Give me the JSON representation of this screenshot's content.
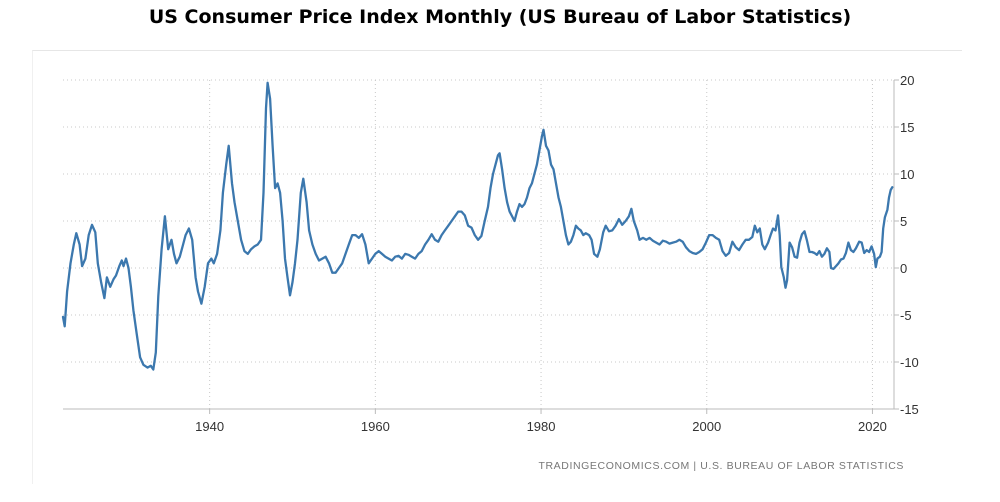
{
  "chart_data": {
    "type": "line",
    "title": "US Consumer Price Index Monthly (US Bureau of Labor Statistics)",
    "source": "TRADINGECONOMICS.COM  |  U.S. BUREAU OF LABOR STATISTICS",
    "xlabel": "",
    "ylabel": "",
    "xlim": [
      1922.3,
      2022.6
    ],
    "ylim": [
      -15,
      20
    ],
    "x_ticks": [
      1940,
      1960,
      1980,
      2000,
      2020
    ],
    "y_ticks": [
      20,
      15,
      10,
      5,
      0,
      -5,
      -10,
      -15
    ],
    "y_axis_position": "right",
    "grid": "dotted vertical and horizontal",
    "line_color": "#3c78ae",
    "series": [
      {
        "values": [
          [
            1922.3,
            -5.2
          ],
          [
            1922.5,
            -6.2
          ],
          [
            1922.8,
            -2.5
          ],
          [
            1923.2,
            0.5
          ],
          [
            1923.6,
            2.5
          ],
          [
            1923.9,
            3.7
          ],
          [
            1924.3,
            2.5
          ],
          [
            1924.6,
            0.2
          ],
          [
            1925.0,
            1.0
          ],
          [
            1925.4,
            3.5
          ],
          [
            1925.8,
            4.6
          ],
          [
            1926.2,
            3.8
          ],
          [
            1926.5,
            0.5
          ],
          [
            1926.9,
            -1.5
          ],
          [
            1927.3,
            -3.2
          ],
          [
            1927.6,
            -1.0
          ],
          [
            1928.0,
            -2.0
          ],
          [
            1928.4,
            -1.2
          ],
          [
            1928.7,
            -0.8
          ],
          [
            1929.1,
            0.2
          ],
          [
            1929.4,
            0.8
          ],
          [
            1929.6,
            0.2
          ],
          [
            1929.9,
            1.0
          ],
          [
            1930.2,
            0.0
          ],
          [
            1930.5,
            -2.0
          ],
          [
            1930.8,
            -4.5
          ],
          [
            1931.2,
            -7.0
          ],
          [
            1931.6,
            -9.5
          ],
          [
            1932.0,
            -10.3
          ],
          [
            1932.5,
            -10.6
          ],
          [
            1932.9,
            -10.4
          ],
          [
            1933.2,
            -10.8
          ],
          [
            1933.5,
            -9.0
          ],
          [
            1933.8,
            -3.0
          ],
          [
            1934.2,
            2.0
          ],
          [
            1934.6,
            5.5
          ],
          [
            1935.0,
            2.0
          ],
          [
            1935.4,
            3.0
          ],
          [
            1935.7,
            1.5
          ],
          [
            1936.0,
            0.5
          ],
          [
            1936.4,
            1.2
          ],
          [
            1936.8,
            2.5
          ],
          [
            1937.1,
            3.5
          ],
          [
            1937.5,
            4.2
          ],
          [
            1937.9,
            3.0
          ],
          [
            1938.3,
            -1.0
          ],
          [
            1938.6,
            -2.5
          ],
          [
            1939.0,
            -3.8
          ],
          [
            1939.4,
            -2.0
          ],
          [
            1939.8,
            0.5
          ],
          [
            1940.2,
            1.0
          ],
          [
            1940.5,
            0.5
          ],
          [
            1940.9,
            1.5
          ],
          [
            1941.3,
            4.0
          ],
          [
            1941.6,
            8.0
          ],
          [
            1942.0,
            11.0
          ],
          [
            1942.3,
            13.0
          ],
          [
            1942.7,
            9.0
          ],
          [
            1943.0,
            7.0
          ],
          [
            1943.4,
            5.0
          ],
          [
            1943.8,
            3.0
          ],
          [
            1944.2,
            1.8
          ],
          [
            1944.6,
            1.5
          ],
          [
            1945.0,
            2.0
          ],
          [
            1945.4,
            2.3
          ],
          [
            1945.8,
            2.5
          ],
          [
            1946.2,
            3.0
          ],
          [
            1946.5,
            8.0
          ],
          [
            1946.8,
            17.0
          ],
          [
            1947.0,
            19.7
          ],
          [
            1947.3,
            18.0
          ],
          [
            1947.6,
            13.0
          ],
          [
            1947.9,
            8.5
          ],
          [
            1948.2,
            9.0
          ],
          [
            1948.5,
            8.0
          ],
          [
            1948.8,
            5.0
          ],
          [
            1949.1,
            1.0
          ],
          [
            1949.4,
            -1.0
          ],
          [
            1949.7,
            -2.9
          ],
          [
            1950.0,
            -1.5
          ],
          [
            1950.3,
            0.5
          ],
          [
            1950.6,
            3.0
          ],
          [
            1951.0,
            8.0
          ],
          [
            1951.3,
            9.5
          ],
          [
            1951.7,
            7.0
          ],
          [
            1952.0,
            4.0
          ],
          [
            1952.4,
            2.5
          ],
          [
            1952.8,
            1.5
          ],
          [
            1953.2,
            0.8
          ],
          [
            1953.6,
            1.0
          ],
          [
            1954.0,
            1.2
          ],
          [
            1954.4,
            0.5
          ],
          [
            1954.8,
            -0.5
          ],
          [
            1955.2,
            -0.5
          ],
          [
            1955.6,
            0.0
          ],
          [
            1956.0,
            0.5
          ],
          [
            1956.4,
            1.5
          ],
          [
            1956.8,
            2.5
          ],
          [
            1957.2,
            3.5
          ],
          [
            1957.6,
            3.5
          ],
          [
            1958.0,
            3.2
          ],
          [
            1958.4,
            3.6
          ],
          [
            1958.8,
            2.5
          ],
          [
            1959.2,
            0.5
          ],
          [
            1959.6,
            1.0
          ],
          [
            1960.0,
            1.5
          ],
          [
            1960.4,
            1.8
          ],
          [
            1960.8,
            1.5
          ],
          [
            1961.2,
            1.2
          ],
          [
            1961.6,
            1.0
          ],
          [
            1962.0,
            0.8
          ],
          [
            1962.4,
            1.2
          ],
          [
            1962.8,
            1.3
          ],
          [
            1963.2,
            1.0
          ],
          [
            1963.6,
            1.5
          ],
          [
            1964.0,
            1.4
          ],
          [
            1964.4,
            1.2
          ],
          [
            1964.8,
            1.0
          ],
          [
            1965.2,
            1.5
          ],
          [
            1965.6,
            1.8
          ],
          [
            1966.0,
            2.5
          ],
          [
            1966.4,
            3.0
          ],
          [
            1966.8,
            3.6
          ],
          [
            1967.2,
            3.0
          ],
          [
            1967.6,
            2.8
          ],
          [
            1968.0,
            3.5
          ],
          [
            1968.4,
            4.0
          ],
          [
            1968.8,
            4.5
          ],
          [
            1969.2,
            5.0
          ],
          [
            1969.6,
            5.5
          ],
          [
            1970.0,
            6.0
          ],
          [
            1970.4,
            6.0
          ],
          [
            1970.8,
            5.6
          ],
          [
            1971.2,
            4.5
          ],
          [
            1971.6,
            4.3
          ],
          [
            1972.0,
            3.5
          ],
          [
            1972.4,
            3.0
          ],
          [
            1972.8,
            3.4
          ],
          [
            1973.2,
            5.0
          ],
          [
            1973.6,
            6.5
          ],
          [
            1973.9,
            8.5
          ],
          [
            1974.2,
            10.0
          ],
          [
            1974.5,
            11.0
          ],
          [
            1974.8,
            12.0
          ],
          [
            1975.0,
            12.2
          ],
          [
            1975.3,
            10.5
          ],
          [
            1975.6,
            8.5
          ],
          [
            1975.9,
            7.0
          ],
          [
            1976.2,
            6.0
          ],
          [
            1976.5,
            5.5
          ],
          [
            1976.8,
            5.0
          ],
          [
            1977.1,
            6.0
          ],
          [
            1977.4,
            6.8
          ],
          [
            1977.7,
            6.5
          ],
          [
            1978.0,
            6.8
          ],
          [
            1978.3,
            7.5
          ],
          [
            1978.6,
            8.5
          ],
          [
            1978.9,
            9.0
          ],
          [
            1979.2,
            10.0
          ],
          [
            1979.5,
            11.0
          ],
          [
            1979.8,
            12.5
          ],
          [
            1980.1,
            14.0
          ],
          [
            1980.3,
            14.7
          ],
          [
            1980.6,
            13.0
          ],
          [
            1980.9,
            12.5
          ],
          [
            1981.2,
            11.0
          ],
          [
            1981.5,
            10.5
          ],
          [
            1981.8,
            9.0
          ],
          [
            1982.1,
            7.5
          ],
          [
            1982.4,
            6.5
          ],
          [
            1982.7,
            5.0
          ],
          [
            1983.0,
            3.5
          ],
          [
            1983.3,
            2.5
          ],
          [
            1983.6,
            2.8
          ],
          [
            1983.9,
            3.5
          ],
          [
            1984.2,
            4.5
          ],
          [
            1984.5,
            4.2
          ],
          [
            1984.8,
            4.0
          ],
          [
            1985.1,
            3.5
          ],
          [
            1985.4,
            3.7
          ],
          [
            1985.8,
            3.5
          ],
          [
            1986.1,
            3.0
          ],
          [
            1986.4,
            1.5
          ],
          [
            1986.8,
            1.2
          ],
          [
            1987.1,
            2.0
          ],
          [
            1987.5,
            3.8
          ],
          [
            1987.8,
            4.5
          ],
          [
            1988.2,
            3.9
          ],
          [
            1988.6,
            4.0
          ],
          [
            1989.0,
            4.5
          ],
          [
            1989.4,
            5.2
          ],
          [
            1989.8,
            4.6
          ],
          [
            1990.2,
            5.0
          ],
          [
            1990.6,
            5.5
          ],
          [
            1990.9,
            6.3
          ],
          [
            1991.2,
            5.0
          ],
          [
            1991.6,
            4.0
          ],
          [
            1991.9,
            3.0
          ],
          [
            1992.3,
            3.2
          ],
          [
            1992.7,
            3.0
          ],
          [
            1993.1,
            3.2
          ],
          [
            1993.5,
            2.9
          ],
          [
            1993.9,
            2.7
          ],
          [
            1994.3,
            2.5
          ],
          [
            1994.7,
            2.9
          ],
          [
            1995.1,
            2.8
          ],
          [
            1995.5,
            2.6
          ],
          [
            1995.9,
            2.7
          ],
          [
            1996.3,
            2.8
          ],
          [
            1996.7,
            3.0
          ],
          [
            1997.1,
            2.8
          ],
          [
            1997.5,
            2.2
          ],
          [
            1997.9,
            1.8
          ],
          [
            1998.3,
            1.6
          ],
          [
            1998.7,
            1.5
          ],
          [
            1999.1,
            1.7
          ],
          [
            1999.5,
            2.0
          ],
          [
            1999.9,
            2.7
          ],
          [
            2000.3,
            3.5
          ],
          [
            2000.7,
            3.5
          ],
          [
            2001.1,
            3.2
          ],
          [
            2001.5,
            3.0
          ],
          [
            2001.9,
            1.8
          ],
          [
            2002.3,
            1.3
          ],
          [
            2002.7,
            1.6
          ],
          [
            2003.1,
            2.8
          ],
          [
            2003.5,
            2.2
          ],
          [
            2003.9,
            1.9
          ],
          [
            2004.3,
            2.5
          ],
          [
            2004.7,
            3.0
          ],
          [
            2005.1,
            3.0
          ],
          [
            2005.5,
            3.3
          ],
          [
            2005.8,
            4.5
          ],
          [
            2006.1,
            3.8
          ],
          [
            2006.4,
            4.2
          ],
          [
            2006.7,
            2.5
          ],
          [
            2007.0,
            2.0
          ],
          [
            2007.4,
            2.7
          ],
          [
            2007.7,
            3.5
          ],
          [
            2008.0,
            4.2
          ],
          [
            2008.3,
            4.0
          ],
          [
            2008.6,
            5.6
          ],
          [
            2008.8,
            3.5
          ],
          [
            2009.0,
            0.1
          ],
          [
            2009.3,
            -1.0
          ],
          [
            2009.5,
            -2.1
          ],
          [
            2009.7,
            -1.3
          ],
          [
            2010.0,
            2.7
          ],
          [
            2010.3,
            2.2
          ],
          [
            2010.6,
            1.2
          ],
          [
            2010.9,
            1.1
          ],
          [
            2011.2,
            2.7
          ],
          [
            2011.5,
            3.6
          ],
          [
            2011.8,
            3.9
          ],
          [
            2012.1,
            2.9
          ],
          [
            2012.4,
            1.7
          ],
          [
            2012.7,
            1.7
          ],
          [
            2013.0,
            1.6
          ],
          [
            2013.3,
            1.4
          ],
          [
            2013.6,
            1.8
          ],
          [
            2013.9,
            1.2
          ],
          [
            2014.2,
            1.5
          ],
          [
            2014.5,
            2.1
          ],
          [
            2014.8,
            1.7
          ],
          [
            2015.0,
            0.0
          ],
          [
            2015.3,
            -0.1
          ],
          [
            2015.6,
            0.2
          ],
          [
            2015.9,
            0.5
          ],
          [
            2016.2,
            0.9
          ],
          [
            2016.5,
            1.0
          ],
          [
            2016.8,
            1.6
          ],
          [
            2017.1,
            2.7
          ],
          [
            2017.4,
            1.9
          ],
          [
            2017.7,
            1.7
          ],
          [
            2018.0,
            2.1
          ],
          [
            2018.4,
            2.8
          ],
          [
            2018.7,
            2.7
          ],
          [
            2019.0,
            1.6
          ],
          [
            2019.3,
            1.9
          ],
          [
            2019.6,
            1.7
          ],
          [
            2019.9,
            2.3
          ],
          [
            2020.2,
            1.5
          ],
          [
            2020.4,
            0.1
          ],
          [
            2020.6,
            1.0
          ],
          [
            2020.9,
            1.2
          ],
          [
            2021.1,
            1.7
          ],
          [
            2021.3,
            4.2
          ],
          [
            2021.5,
            5.4
          ],
          [
            2021.8,
            6.2
          ],
          [
            2022.0,
            7.5
          ],
          [
            2022.2,
            8.3
          ],
          [
            2022.4,
            8.6
          ]
        ]
      }
    ]
  }
}
